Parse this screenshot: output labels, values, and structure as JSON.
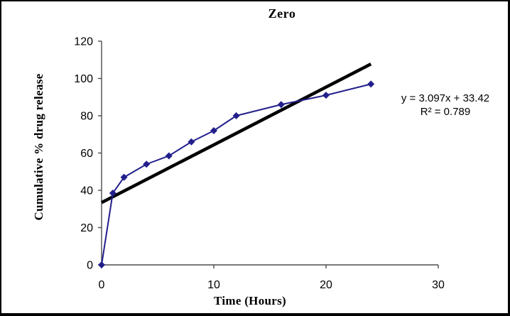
{
  "chart_data": {
    "type": "line",
    "title": "Zero",
    "xlabel": "Time (Hours)",
    "ylabel": "Cumulative % drug release",
    "xlim": [
      0,
      30
    ],
    "ylim": [
      0,
      120
    ],
    "x_ticks": [
      0,
      10,
      20,
      30
    ],
    "x_tick_labels": [
      "0",
      "10",
      "20",
      "30"
    ],
    "y_ticks": [
      0,
      20,
      40,
      60,
      80,
      100,
      120
    ],
    "y_tick_labels": [
      "0",
      "20",
      "40",
      "60",
      "80",
      "100",
      "120"
    ],
    "grid": false,
    "legend": "none",
    "series": [
      {
        "name": "cumulative-drug-release",
        "marker": "diamond",
        "color": "#221F8C",
        "x": [
          0,
          1,
          2,
          4,
          6,
          8,
          10,
          12,
          16,
          20,
          24
        ],
        "y": [
          0,
          38.5,
          47,
          54,
          58.5,
          66,
          72,
          80,
          86,
          91,
          97
        ]
      }
    ],
    "trendline": {
      "equation": "y = 3.097x + 33.42",
      "r_squared": "R² = 0.789",
      "slope": 3.097,
      "intercept": 33.42,
      "x_start": 0,
      "x_end": 24,
      "color": "#000000"
    },
    "axis_color": "#4d4d4d"
  }
}
